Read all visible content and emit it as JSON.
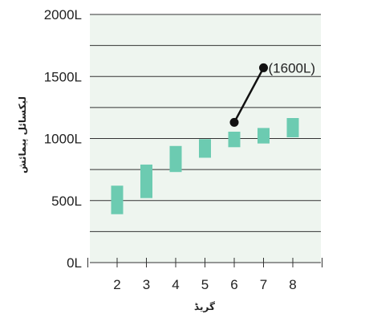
{
  "chart_data": {
    "type": "bar",
    "categories": [
      "2",
      "3",
      "4",
      "5",
      "6",
      "7",
      "8"
    ],
    "ranges": [
      {
        "x": "2",
        "low": 390,
        "high": 620
      },
      {
        "x": "3",
        "low": 520,
        "high": 790
      },
      {
        "x": "4",
        "low": 730,
        "high": 940
      },
      {
        "x": "5",
        "low": 845,
        "high": 995
      },
      {
        "x": "6",
        "low": 930,
        "high": 1055
      },
      {
        "x": "7",
        "low": 960,
        "high": 1085
      },
      {
        "x": "8",
        "low": 1010,
        "high": 1165
      }
    ],
    "highlight_line": {
      "points": [
        {
          "x": 6,
          "y": 1130
        },
        {
          "x": 7,
          "y": 1570
        }
      ],
      "annotation": "(1600L)"
    },
    "title": "",
    "xlabel": "گریڈ",
    "ylabel": "لیکسائل پیمائش",
    "ylim": [
      0,
      2000
    ],
    "y_ticks": [
      {
        "value": 0,
        "label": "0L"
      },
      {
        "value": 500,
        "label": "500L"
      },
      {
        "value": 1000,
        "label": "1000L"
      },
      {
        "value": 1500,
        "label": "1500L"
      },
      {
        "value": 2000,
        "label": "2000L"
      }
    ],
    "grid": true,
    "colors": {
      "plot_background": "#eef5ef",
      "bar": "#6ccbb1",
      "grid": "#333333",
      "line": "#111111"
    }
  }
}
